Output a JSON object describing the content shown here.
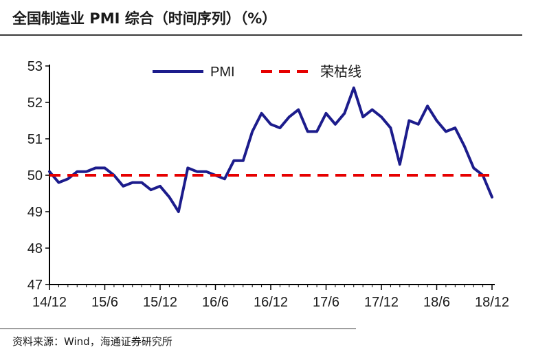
{
  "header": {
    "title": "全国制造业 PMI 综合（时间序列）（%）"
  },
  "footer": {
    "source": "资料来源：Wind，海通证券研究所"
  },
  "colors": {
    "pmi_line": "#1c1c8c",
    "threshold_line": "#e60000",
    "axis": "#000000",
    "text": "#1a1a1a"
  },
  "chart_data": {
    "type": "line",
    "title": "全国制造业 PMI 综合（时间序列）（%）",
    "xlabel": "",
    "ylabel": "",
    "ylim": [
      47,
      53
    ],
    "yticks": [
      "47",
      "48",
      "49",
      "50",
      "51",
      "52",
      "53"
    ],
    "xtick_labels": [
      "14/12",
      "15/6",
      "15/12",
      "16/6",
      "16/12",
      "17/6",
      "17/12",
      "18/6",
      "18/12"
    ],
    "grid": false,
    "legend_position": "top-center",
    "x": [
      "14/12",
      "15/1",
      "15/2",
      "15/3",
      "15/4",
      "15/5",
      "15/6",
      "15/7",
      "15/8",
      "15/9",
      "15/10",
      "15/11",
      "15/12",
      "16/1",
      "16/2",
      "16/3",
      "16/4",
      "16/5",
      "16/6",
      "16/7",
      "16/8",
      "16/9",
      "16/10",
      "16/11",
      "16/12",
      "17/1",
      "17/2",
      "17/3",
      "17/4",
      "17/5",
      "17/6",
      "17/7",
      "17/8",
      "17/9",
      "17/10",
      "17/11",
      "17/12",
      "18/1",
      "18/2",
      "18/3",
      "18/4",
      "18/5",
      "18/6",
      "18/7",
      "18/8",
      "18/9",
      "18/10",
      "18/11",
      "18/12"
    ],
    "series": [
      {
        "name": "PMI",
        "style": "solid",
        "values": [
          50.1,
          49.8,
          49.9,
          50.1,
          50.1,
          50.2,
          50.2,
          50.0,
          49.7,
          49.8,
          49.8,
          49.6,
          49.7,
          49.4,
          49.0,
          50.2,
          50.1,
          50.1,
          50.0,
          49.9,
          50.4,
          50.4,
          51.2,
          51.7,
          51.4,
          51.3,
          51.6,
          51.8,
          51.2,
          51.2,
          51.7,
          51.4,
          51.7,
          52.4,
          51.6,
          51.8,
          51.6,
          51.3,
          50.3,
          51.5,
          51.4,
          51.9,
          51.5,
          51.2,
          51.3,
          50.8,
          50.2,
          50.0,
          49.4
        ]
      },
      {
        "name": "荣枯线",
        "style": "dashed",
        "values": [
          50,
          50,
          50,
          50,
          50,
          50,
          50,
          50,
          50,
          50,
          50,
          50,
          50,
          50,
          50,
          50,
          50,
          50,
          50,
          50,
          50,
          50,
          50,
          50,
          50,
          50,
          50,
          50,
          50,
          50,
          50,
          50,
          50,
          50,
          50,
          50,
          50,
          50,
          50,
          50,
          50,
          50,
          50,
          50,
          50,
          50,
          50,
          50,
          50
        ]
      }
    ]
  }
}
